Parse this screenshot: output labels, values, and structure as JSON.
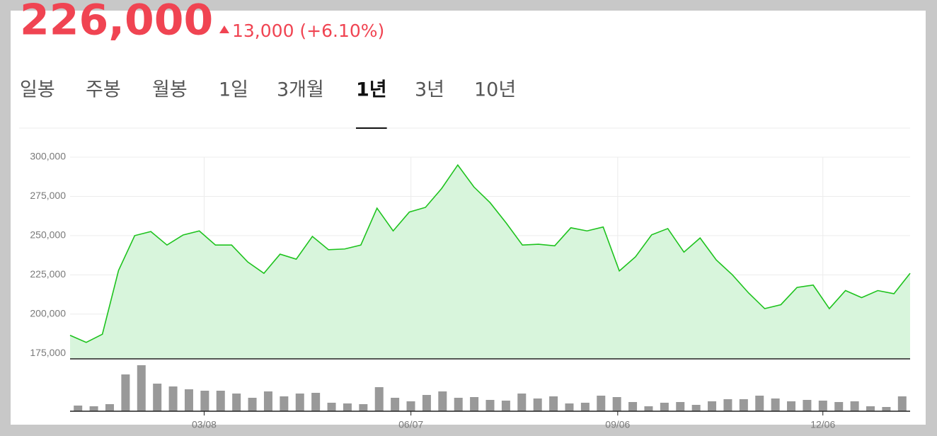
{
  "header": {
    "price": "226,000",
    "change": "13,000 (+6.10%)"
  },
  "tabs": [
    "일봉",
    "주봉",
    "월봉",
    "1일",
    "3개월",
    "1년",
    "3년",
    "10년"
  ],
  "selected_tab": 5,
  "chart_data": {
    "type": "line",
    "series": [
      {
        "name": "price",
        "color": "#1ec31e",
        "fill": "#d8f5dc",
        "values": [
          186500,
          182000,
          187200,
          227800,
          250000,
          252600,
          244000,
          250400,
          253000,
          244000,
          244000,
          233200,
          226000,
          238200,
          235000,
          249500,
          241000,
          241500,
          244000,
          267500,
          253000,
          265000,
          268000,
          280000,
          295000,
          281000,
          271000,
          258000,
          244000,
          244500,
          243500,
          255000,
          253000,
          255500,
          227500,
          236500,
          250500,
          254500,
          239500,
          248500,
          234500,
          225000,
          213500,
          203500,
          206000,
          217000,
          218500,
          203500,
          215000,
          210500,
          215000,
          213000,
          226000
        ]
      },
      {
        "name": "volume",
        "type": "bar",
        "color": "#999999",
        "values": [
          8,
          7,
          10,
          52,
          65,
          39,
          35,
          31,
          29,
          29,
          25,
          19,
          28,
          21,
          25,
          26,
          12,
          11,
          10,
          34,
          19,
          14,
          23,
          28,
          19,
          20,
          16,
          15,
          25,
          18,
          21,
          11,
          12,
          22,
          20,
          13,
          7,
          12,
          13,
          9,
          14,
          17,
          17,
          22,
          18,
          14,
          16,
          15,
          13,
          14,
          7,
          6,
          21
        ]
      }
    ],
    "ylim": [
      171500,
      300000
    ],
    "yticks": [
      {
        "value": 175000,
        "label": "175,000"
      },
      {
        "value": 200000,
        "label": "200,000"
      },
      {
        "value": 225000,
        "label": "225,000"
      },
      {
        "value": 250000,
        "label": "250,000"
      },
      {
        "value": 275000,
        "label": "275,000"
      },
      {
        "value": 300000,
        "label": "300,000"
      }
    ],
    "volume_lim": [
      0,
      70
    ],
    "xlim": [
      0,
      52
    ],
    "xticks": [
      {
        "value": 8.3,
        "label": "03/08"
      },
      {
        "value": 21.1,
        "label": "06/07"
      },
      {
        "value": 33.9,
        "label": "09/06"
      },
      {
        "value": 46.6,
        "label": "12/06"
      }
    ],
    "grid": true
  }
}
